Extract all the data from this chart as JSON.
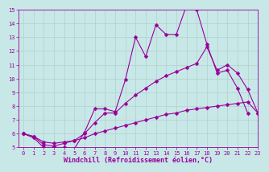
{
  "title": "",
  "xlabel": "Windchill (Refroidissement éolien,°C)",
  "ylabel": "",
  "xlim": [
    -0.5,
    23
  ],
  "ylim": [
    5,
    15
  ],
  "xticks": [
    0,
    1,
    2,
    3,
    4,
    5,
    6,
    7,
    8,
    9,
    10,
    11,
    12,
    13,
    14,
    15,
    16,
    17,
    18,
    19,
    20,
    21,
    22,
    23
  ],
  "yticks": [
    5,
    6,
    7,
    8,
    9,
    10,
    11,
    12,
    13,
    14,
    15
  ],
  "background_color": "#c8e8e8",
  "grid_color": "#b0d0d0",
  "line_color": "#990099",
  "line1_x": [
    0,
    1,
    2,
    3,
    4,
    5,
    6,
    7,
    8,
    9,
    10,
    11,
    12,
    13,
    14,
    15,
    16,
    17,
    18,
    19,
    20,
    21,
    22,
    23
  ],
  "line1_y": [
    6.0,
    5.7,
    5.0,
    5.0,
    5.0,
    4.9,
    6.1,
    7.8,
    7.8,
    7.6,
    9.9,
    13.0,
    11.6,
    13.9,
    13.2,
    13.2,
    15.3,
    15.0,
    12.5,
    10.4,
    10.6,
    9.3,
    7.5,
    null
  ],
  "line2_x": [
    0,
    1,
    2,
    3,
    4,
    5,
    6,
    7,
    8,
    9,
    10,
    11,
    12,
    13,
    14,
    15,
    16,
    17,
    18,
    19,
    20,
    21,
    22,
    23
  ],
  "line2_y": [
    6.0,
    5.8,
    5.2,
    5.1,
    5.3,
    5.5,
    6.0,
    6.8,
    7.5,
    7.5,
    8.2,
    8.8,
    9.3,
    9.8,
    10.2,
    10.5,
    10.8,
    11.1,
    12.3,
    10.6,
    11.0,
    10.4,
    9.2,
    7.5
  ],
  "line3_x": [
    0,
    1,
    2,
    3,
    4,
    5,
    6,
    7,
    8,
    9,
    10,
    11,
    12,
    13,
    14,
    15,
    16,
    17,
    18,
    19,
    20,
    21,
    22,
    23
  ],
  "line3_y": [
    6.0,
    5.8,
    5.4,
    5.3,
    5.4,
    5.5,
    5.7,
    6.0,
    6.2,
    6.4,
    6.6,
    6.8,
    7.0,
    7.2,
    7.4,
    7.5,
    7.7,
    7.8,
    7.9,
    8.0,
    8.1,
    8.2,
    8.3,
    7.5
  ],
  "marker": "D",
  "markersize": 2.5,
  "linewidth": 0.8,
  "tick_fontsize": 5.0,
  "xlabel_fontsize": 6.0
}
